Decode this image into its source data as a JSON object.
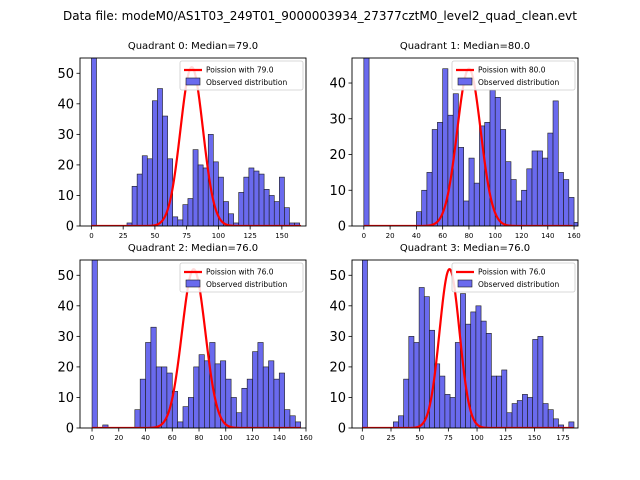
{
  "suptitle": "Data file: modeM0/AS1T03_249T01_9000003934_27377cztM0_level2_quad_clean.evt",
  "chart_data": [
    {
      "type": "bar",
      "title": "Quadrant 0: Median=79.0",
      "legend": [
        "Poission with 79.0",
        "Observed distribution"
      ],
      "mean": 79.0,
      "xlim": [
        -9,
        169
      ],
      "ylim": [
        0,
        55
      ],
      "xticks": [
        0,
        25,
        50,
        75,
        100,
        125,
        150
      ],
      "yticks": [
        0,
        10,
        20,
        30,
        40,
        50
      ],
      "bin_start": 0,
      "bin_width": 4,
      "counts": [
        55,
        0,
        0,
        0,
        0,
        0,
        0,
        1,
        13,
        17,
        23,
        22,
        41,
        45,
        36,
        22,
        3,
        2,
        7,
        9,
        25,
        20,
        19,
        30,
        21,
        16,
        8,
        4,
        1,
        11,
        16,
        19,
        18,
        17,
        12,
        10,
        8,
        16,
        6,
        1,
        1
      ],
      "fit_scale": 52
    },
    {
      "type": "bar",
      "title": "Quadrant 1: Median=80.0",
      "legend": [
        "Poission with 80.0",
        "Observed distribution"
      ],
      "mean": 80.0,
      "xlim": [
        -9,
        163
      ],
      "ylim": [
        0,
        47
      ],
      "xticks": [
        0,
        20,
        40,
        60,
        80,
        100,
        120,
        140,
        160
      ],
      "yticks": [
        0,
        10,
        20,
        30,
        40
      ],
      "bin_start": 0,
      "bin_width": 4,
      "counts": [
        47,
        0,
        0,
        0,
        0,
        0,
        0,
        0,
        0,
        0,
        4,
        10,
        15,
        27,
        29,
        44,
        31,
        37,
        22,
        7,
        19,
        12,
        28,
        29,
        38,
        36,
        27,
        18,
        13,
        7,
        10,
        16,
        21,
        21,
        19,
        26,
        35,
        15,
        13,
        8,
        1
      ],
      "fit_scale": 44
    },
    {
      "type": "bar",
      "title": "Quadrant 2: Median=76.0",
      "legend": [
        "Poission with 76.0",
        "Observed distribution"
      ],
      "mean": 76.0,
      "xlim": [
        -9,
        160
      ],
      "ylim": [
        0,
        55
      ],
      "xticks": [
        0,
        20,
        40,
        60,
        80,
        100,
        120,
        140,
        160
      ],
      "yticks": [
        0,
        10,
        20,
        30,
        40,
        50
      ],
      "bin_start": 0,
      "bin_width": 4,
      "counts": [
        55,
        0,
        1,
        0,
        0,
        0,
        0,
        0,
        6,
        16,
        28,
        33,
        20,
        20,
        18,
        12,
        2,
        7,
        10,
        20,
        24,
        22,
        28,
        21,
        22,
        16,
        10,
        5,
        13,
        16,
        25,
        28,
        20,
        22,
        16,
        18,
        6,
        4,
        2
      ],
      "fit_scale": 52
    },
    {
      "type": "bar",
      "title": "Quadrant 3: Median=76.0",
      "legend": [
        "Poission with 76.0",
        "Observed distribution"
      ],
      "mean": 76.0,
      "xlim": [
        -9,
        188
      ],
      "ylim": [
        0,
        55
      ],
      "xticks": [
        0,
        25,
        50,
        75,
        100,
        125,
        150,
        175
      ],
      "yticks": [
        0,
        10,
        20,
        30,
        40,
        50
      ],
      "bin_start": 0,
      "bin_width": 4.5,
      "counts": [
        55,
        0,
        0,
        0,
        0,
        0,
        2,
        4,
        16,
        30,
        28,
        46,
        43,
        32,
        21,
        17,
        11,
        10,
        28,
        44,
        34,
        38,
        40,
        35,
        31,
        17,
        17,
        19,
        5,
        8,
        9,
        11,
        10,
        29,
        30,
        8,
        6,
        3,
        1,
        0,
        2
      ],
      "fit_scale": 52
    }
  ]
}
